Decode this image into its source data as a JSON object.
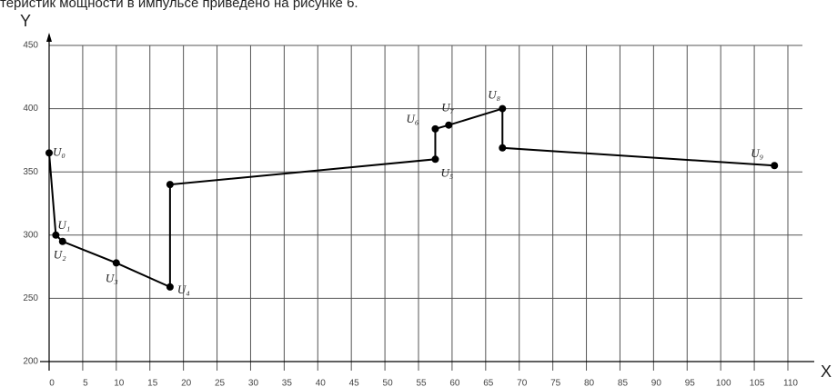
{
  "caption": "теристик мощности в импульсе приведено на рисунке 6.",
  "chart_data": {
    "type": "line",
    "x_label": "X",
    "y_label": "Y",
    "x": [
      0,
      1,
      2,
      10,
      18,
      18,
      57.5,
      57.5,
      59.5,
      67.5,
      67.5,
      108
    ],
    "series": [
      {
        "color": "#000000",
        "values": [
          365,
          300,
          295,
          278,
          259,
          340,
          360,
          384,
          387,
          400,
          369,
          355
        ]
      }
    ],
    "xlim": [
      0,
      110
    ],
    "ylim": [
      200,
      450
    ],
    "xticks": [
      0,
      5,
      10,
      15,
      20,
      25,
      30,
      35,
      40,
      45,
      50,
      55,
      60,
      65,
      70,
      75,
      80,
      85,
      90,
      95,
      100,
      105,
      110
    ],
    "yticks": [
      200,
      250,
      300,
      350,
      400,
      450
    ],
    "grid": true,
    "annotations": [
      "U₀",
      "U₁",
      "U₂",
      "U₃",
      "U₄",
      "U₅",
      "U₆",
      "U₇",
      "U₈",
      "U₉"
    ]
  }
}
